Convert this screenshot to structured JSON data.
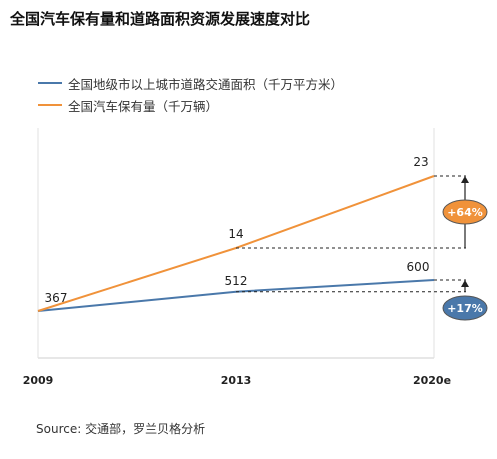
{
  "title": "全国汽车保有量和道路面积资源发展速度对比",
  "source": "Source: 交通部，罗兰贝格分析",
  "legend": [
    {
      "label": "全国地级市以上城市道路交通面积（千万平方米）",
      "color": "#4a78aa"
    },
    {
      "label": "全国汽车保有量（千万辆）",
      "color": "#f0923a"
    }
  ],
  "chart_data": {
    "type": "line",
    "title": "全国汽车保有量和道路面积资源发展速度对比",
    "x": [
      "2009",
      "2013",
      "2020e"
    ],
    "series": [
      {
        "name": "全国地级市以上城市道路交通面积（千万平方米）",
        "values": [
          367,
          512,
          600
        ],
        "color": "#4a78aa",
        "growth_label": "+17%"
      },
      {
        "name": "全国汽车保有量（千万辆）",
        "values": [
          null,
          14,
          23
        ],
        "color": "#f0923a",
        "growth_label": "+64%"
      }
    ],
    "legend_position": "top-left",
    "grid": false
  }
}
